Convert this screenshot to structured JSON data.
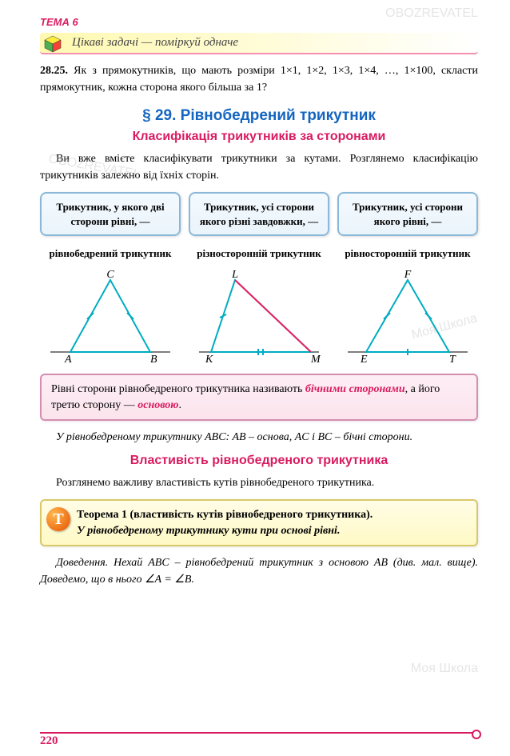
{
  "theme_label": "ТЕМА 6",
  "banner_text": "Цікаві задачі — поміркуй одначе",
  "problem": {
    "num": "28.25.",
    "text": "Як з прямокутників, що мають розміри 1×1, 1×2, 1×3, 1×4, …, 1×100, скласти прямокутник, кожна сторона якого більша за 1?"
  },
  "section_title": "§ 29. Рівнобедрений трикутник",
  "subheading1": "Класифікація трикутників за сторонами",
  "intro_text": "Ви вже вмієте класифікувати трикутники за кутами. Розглянемо класифікацію трикутників залежно від їхніх сторін.",
  "cards": [
    {
      "text": "Трикутник, у якого дві сторони рівні, —"
    },
    {
      "text": "Трикутник, усі сторони якого різні завдовжки, —"
    },
    {
      "text": "Трикутник, усі сторони якого рівні, —"
    }
  ],
  "types": [
    {
      "label": "рівнобедрений трикутник"
    },
    {
      "label": "різносторонній трикутник"
    },
    {
      "label": "рівносторонній трикутник"
    }
  ],
  "triangles": {
    "stroke_color": "#00acc1",
    "label_color": "#000000",
    "accent_color": "#e91e63",
    "t1": {
      "v": [
        "A",
        "B",
        "C"
      ]
    },
    "t2": {
      "v": [
        "K",
        "M",
        "L"
      ]
    },
    "t3": {
      "v": [
        "E",
        "T",
        "F"
      ]
    }
  },
  "definition_html": "Рівні сторони рівнобедреного трикутника називають <em class='key'>бічними сторонами</em>, а його третю сторону — <em class='key'>основою</em>.",
  "example_text": "У рівнобедреному трикутнику ABC: AB – основа, AC і BC – бічні сторони.",
  "subheading2": "Властивість рівнобедреного трикутника",
  "property_intro": "Розглянемо важливу властивість кутів рівнобедреного трикутника.",
  "theorem": {
    "badge": "Т",
    "title": "Теорема 1 (властивість кутів рівнобедреного трикутника).",
    "statement": "У рівнобедреному трикутнику кути при основі рівні."
  },
  "proof_intro": "Доведення. Нехай ABC – рівнобедрений трикутник з основою AB (див. мал. вище). Доведемо, що в нього ∠A = ∠B.",
  "page_number": "220",
  "watermarks": [
    "OBOZREVATEL",
    "Моя Школа",
    "Моя Школа",
    "OBOZREVATEL"
  ]
}
